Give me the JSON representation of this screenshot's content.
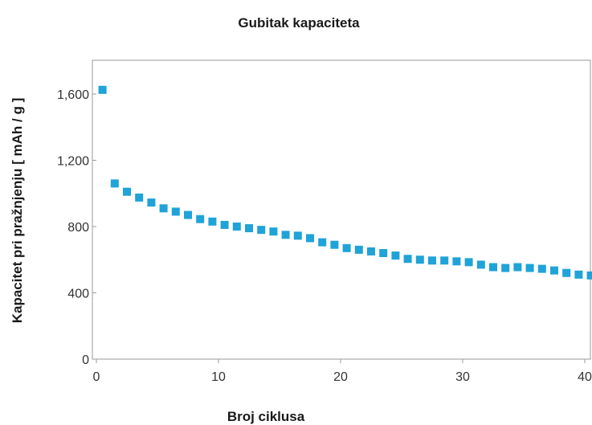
{
  "chart_data": {
    "type": "scatter",
    "title": "Gubitak kapaciteta",
    "xlabel": "Broj ciklusa",
    "ylabel": "Kapacitet pri pražnjenju [ mAh / g ]",
    "xlim": [
      0,
      41
    ],
    "ylim": [
      0,
      1800
    ],
    "xticks": [
      0,
      10,
      20,
      30,
      40
    ],
    "xtick_labels": [
      "0",
      "10",
      "20",
      "30",
      "40"
    ],
    "yticks": [
      0,
      400,
      800,
      1200,
      1600
    ],
    "ytick_labels": [
      "0",
      "400",
      "800",
      "1,200",
      "1,600"
    ],
    "grid": false,
    "marker": "square",
    "color": "#1fa3d8",
    "series": [
      {
        "x": [
          0.5,
          1.5,
          2.5,
          3.5,
          4.5,
          5.5,
          6.5,
          7.5,
          8.5,
          9.5,
          10.5,
          11.5,
          12.5,
          13.5,
          14.5,
          15.5,
          16.5,
          17.5,
          18.5,
          19.5,
          20.5,
          21.5,
          22.5,
          23.5,
          24.5,
          25.5,
          26.5,
          27.5,
          28.5,
          29.5,
          30.5,
          31.5,
          32.5,
          33.5,
          34.5,
          35.5,
          36.5,
          37.5,
          38.5,
          39.5,
          40.5
        ],
        "y": [
          1625,
          1060,
          1010,
          975,
          945,
          910,
          890,
          870,
          845,
          830,
          810,
          800,
          790,
          780,
          770,
          750,
          745,
          730,
          705,
          690,
          670,
          660,
          650,
          640,
          625,
          605,
          600,
          595,
          595,
          590,
          585,
          570,
          555,
          550,
          555,
          550,
          545,
          535,
          520,
          510,
          505
        ]
      }
    ]
  }
}
